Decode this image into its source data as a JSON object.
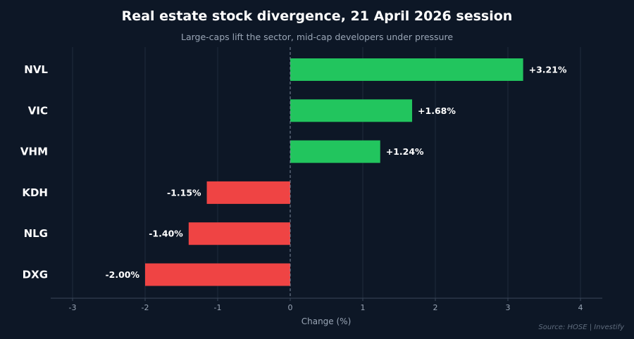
{
  "header": {
    "title": "Real estate stock divergence, 21 April 2026 session",
    "subtitle": "Large-caps lift the sector, mid-cap developers under pressure"
  },
  "footer": {
    "source": "Source: HOSE  |  Investify"
  },
  "chart_data": {
    "type": "bar",
    "orientation": "horizontal",
    "categories": [
      "NVL",
      "VIC",
      "VHM",
      "KDH",
      "NLG",
      "DXG"
    ],
    "values": [
      3.21,
      1.68,
      1.24,
      -1.15,
      -1.4,
      -2.0
    ],
    "value_labels": [
      "+3.21%",
      "+1.68%",
      "+1.24%",
      "-1.15%",
      "-1.40%",
      "-2.00%"
    ],
    "xlabel": "Change (%)",
    "xlim": [
      -3,
      4
    ],
    "xticks": [
      -3,
      -2,
      -1,
      0,
      1,
      2,
      3,
      4
    ],
    "grid": true,
    "zero_line": "dashed",
    "colors": {
      "positive": "#22c55e",
      "negative": "#ef4444",
      "background": "#0d1726",
      "grid": "#1f2b3c"
    }
  }
}
